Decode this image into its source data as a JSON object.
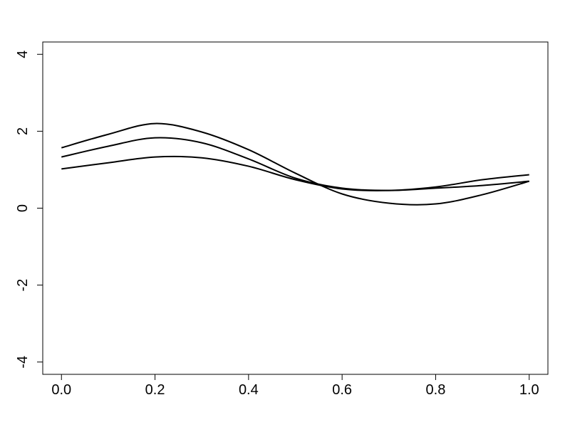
{
  "chart_data": {
    "type": "line",
    "x": [
      0,
      0.1,
      0.2,
      0.3,
      0.4,
      0.5,
      0.6,
      0.7,
      0.8,
      0.9,
      1.0
    ],
    "series": [
      {
        "color": "#000000",
        "values": [
          1.57,
          1.92,
          2.2,
          1.98,
          1.52,
          0.91,
          0.37,
          0.13,
          0.11,
          0.35,
          0.7
        ]
      },
      {
        "color": "#000000",
        "values": [
          1.33,
          1.61,
          1.83,
          1.7,
          1.28,
          0.78,
          0.52,
          0.46,
          0.52,
          0.59,
          0.7
        ]
      },
      {
        "color": "#000000",
        "values": [
          1.02,
          1.18,
          1.33,
          1.31,
          1.09,
          0.74,
          0.5,
          0.46,
          0.55,
          0.74,
          0.87
        ]
      }
    ],
    "xlim": [
      -0.04,
      1.04
    ],
    "xticks": [
      {
        "value": 0,
        "label": "0.0"
      },
      {
        "value": 0.2,
        "label": "0.2"
      },
      {
        "value": 0.4,
        "label": "0.4"
      },
      {
        "value": 0.6,
        "label": "0.6"
      },
      {
        "value": 0.8,
        "label": "0.8"
      },
      {
        "value": 1.0,
        "label": "1.0"
      }
    ],
    "ylim": [
      -4.32,
      4.32
    ],
    "yticks": [
      -4,
      -2,
      0,
      2,
      4
    ]
  }
}
